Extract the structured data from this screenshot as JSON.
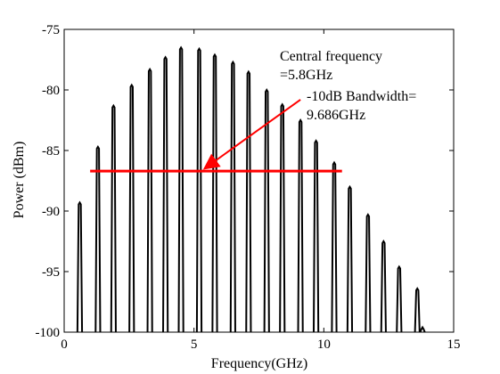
{
  "chart_data": {
    "type": "line",
    "title": "",
    "xlabel": "Frequency(GHz)",
    "ylabel": "Power (dBm)",
    "xlim": [
      0,
      15
    ],
    "ylim": [
      -100,
      -75
    ],
    "xticks": [
      0,
      5,
      10,
      15
    ],
    "xtick_labels": [
      "0",
      "5",
      "10",
      "15"
    ],
    "yticks": [
      -75,
      -80,
      -85,
      -90,
      -95,
      -100
    ],
    "ytick_labels": [
      "-75",
      "-80",
      "-85",
      "-90",
      "-95",
      "-100"
    ],
    "grid": false,
    "legend": "none",
    "series": [
      {
        "style": "comb-spectrum",
        "color": "#000000",
        "floor": -100,
        "peaks": [
          {
            "x": 0.6,
            "y": -89.3
          },
          {
            "x": 1.3,
            "y": -84.7
          },
          {
            "x": 1.9,
            "y": -81.3
          },
          {
            "x": 2.6,
            "y": -79.6
          },
          {
            "x": 3.3,
            "y": -78.3
          },
          {
            "x": 3.9,
            "y": -77.3
          },
          {
            "x": 4.5,
            "y": -76.5
          },
          {
            "x": 5.2,
            "y": -76.6
          },
          {
            "x": 5.8,
            "y": -77.1
          },
          {
            "x": 6.5,
            "y": -77.7
          },
          {
            "x": 7.1,
            "y": -78.5
          },
          {
            "x": 7.8,
            "y": -80.0
          },
          {
            "x": 8.4,
            "y": -81.2
          },
          {
            "x": 9.1,
            "y": -82.5
          },
          {
            "x": 9.7,
            "y": -84.2
          },
          {
            "x": 10.4,
            "y": -86.0
          },
          {
            "x": 11.0,
            "y": -88.0
          },
          {
            "x": 11.7,
            "y": -90.3
          },
          {
            "x": 12.3,
            "y": -92.5
          },
          {
            "x": 12.9,
            "y": -94.6
          },
          {
            "x": 13.6,
            "y": -96.4
          },
          {
            "x": 13.8,
            "y": -99.6
          }
        ]
      }
    ],
    "bandwidth_line": {
      "x_start": 1.0,
      "x_end": 10.7,
      "y": -86.7,
      "color": "#ff0000"
    },
    "arrow": {
      "from": [
        9.1,
        -80.8
      ],
      "to": [
        5.4,
        -86.5
      ],
      "color": "#ff0000"
    },
    "annotations": [
      {
        "lines": [
          "Central frequency",
          "=5.8GHz"
        ]
      },
      {
        "lines": [
          "-10dB Bandwidth=",
          "9.686GHz"
        ]
      }
    ]
  }
}
